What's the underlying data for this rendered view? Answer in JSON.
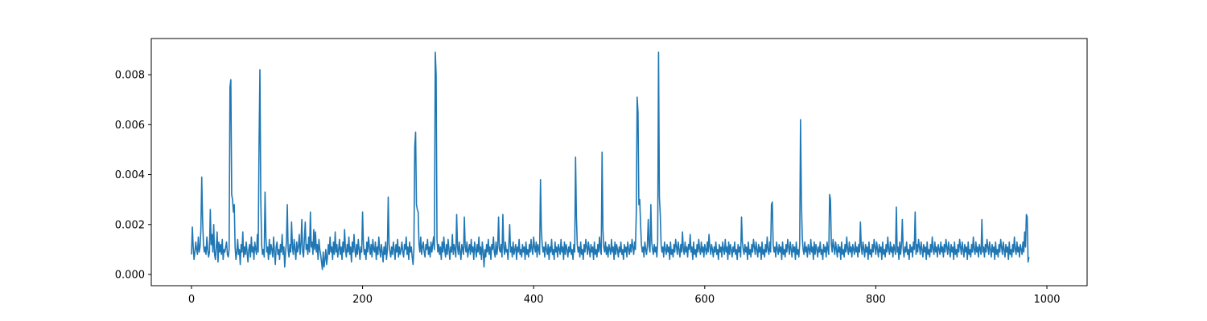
{
  "chart_data": {
    "type": "line",
    "title": "",
    "xlabel": "",
    "ylabel": "",
    "xlim": [
      -47,
      1047
    ],
    "ylim": [
      -0.00045,
      0.00945
    ],
    "xticks": [
      0,
      200,
      400,
      600,
      800,
      1000
    ],
    "xtick_labels": [
      "0",
      "200",
      "400",
      "600",
      "800",
      "1000"
    ],
    "yticks": [
      0,
      0.002,
      0.004,
      0.006,
      0.008
    ],
    "ytick_labels": [
      "0.000",
      "0.002",
      "0.004",
      "0.006",
      "0.008"
    ],
    "grid": false,
    "legend": "none",
    "series": [
      {
        "color": "#1f77b4",
        "x_start": 0,
        "x_step": 1,
        "values": [
          0.0008,
          0.0019,
          0.0011,
          0.0006,
          0.0009,
          0.0013,
          0.001,
          0.0008,
          0.0015,
          0.0009,
          0.0011,
          0.0018,
          0.0039,
          0.0022,
          0.0012,
          0.0009,
          0.0011,
          0.0008,
          0.0015,
          0.001,
          0.0007,
          0.0009,
          0.0026,
          0.0012,
          0.0016,
          0.0009,
          0.002,
          0.0008,
          0.0006,
          0.0011,
          0.0017,
          0.0005,
          0.0013,
          0.0009,
          0.0012,
          0.0008,
          0.0014,
          0.0006,
          0.001,
          0.0009,
          0.0011,
          0.0013,
          0.0008,
          0.0007,
          0.001,
          0.0075,
          0.0078,
          0.0032,
          0.003,
          0.0025,
          0.0028,
          0.0011,
          0.0006,
          0.0009,
          0.0014,
          0.0008,
          0.001,
          0.0004,
          0.0012,
          0.0009,
          0.0017,
          0.0007,
          0.0011,
          0.0008,
          0.0013,
          0.0009,
          0.0005,
          0.001,
          0.0012,
          0.0007,
          0.0015,
          0.0009,
          0.0011,
          0.0006,
          0.0013,
          0.001,
          0.0008,
          0.0016,
          0.0009,
          0.0052,
          0.0082,
          0.0031,
          0.0012,
          0.0008,
          0.001,
          0.0007,
          0.0033,
          0.0015,
          0.0009,
          0.0011,
          0.0006,
          0.0014,
          0.0008,
          0.0012,
          0.001,
          0.0007,
          0.0015,
          0.0009,
          0.0004,
          0.0011,
          0.0013,
          0.0008,
          0.001,
          0.0006,
          0.0012,
          0.0009,
          0.0016,
          0.0008,
          0.0011,
          0.0003,
          0.0009,
          0.0013,
          0.0028,
          0.001,
          0.0007,
          0.0012,
          0.0009,
          0.0021,
          0.0011,
          0.0008,
          0.0014,
          0.001,
          0.0006,
          0.0013,
          0.0009,
          0.0011,
          0.0016,
          0.0008,
          0.0012,
          0.0022,
          0.0009,
          0.0007,
          0.0014,
          0.0021,
          0.001,
          0.0012,
          0.0008,
          0.0015,
          0.0009,
          0.0025,
          0.0011,
          0.0013,
          0.0008,
          0.0018,
          0.001,
          0.0017,
          0.0009,
          0.0012,
          0.0006,
          0.0014,
          0.001,
          0.0008,
          0.0005,
          0.0002,
          0.0009,
          0.0003,
          0.0006,
          0.001,
          0.0004,
          0.0007,
          0.0012,
          0.0008,
          0.0015,
          0.0009,
          0.0011,
          0.0006,
          0.0013,
          0.0008,
          0.0017,
          0.0009,
          0.0012,
          0.0007,
          0.001,
          0.0014,
          0.0008,
          0.0011,
          0.0006,
          0.0013,
          0.0009,
          0.0018,
          0.001,
          0.0007,
          0.0012,
          0.0009,
          0.0015,
          0.0008,
          0.0011,
          0.0005,
          0.0013,
          0.0009,
          0.0016,
          0.001,
          0.0007,
          0.0012,
          0.0008,
          0.0014,
          0.001,
          0.0006,
          0.0011,
          0.0009,
          0.0025,
          0.0012,
          0.0008,
          0.001,
          0.0006,
          0.0013,
          0.0009,
          0.0015,
          0.0011,
          0.0008,
          0.0012,
          0.0007,
          0.0014,
          0.001,
          0.0009,
          0.0013,
          0.0006,
          0.0011,
          0.0008,
          0.0015,
          0.001,
          0.0007,
          0.0012,
          0.0009,
          0.0005,
          0.0011,
          0.0008,
          0.0013,
          0.0006,
          0.001,
          0.0031,
          0.0012,
          0.0009,
          0.0007,
          0.0011,
          0.0008,
          0.0013,
          0.001,
          0.0006,
          0.0012,
          0.0009,
          0.0014,
          0.0007,
          0.0011,
          0.0008,
          0.001,
          0.0013,
          0.0009,
          0.0007,
          0.0012,
          0.001,
          0.0015,
          0.0008,
          0.0011,
          0.0006,
          0.0013,
          0.0009,
          0.0011,
          0.0007,
          0.0004,
          0.001,
          0.0051,
          0.0057,
          0.0028,
          0.0026,
          0.0025,
          0.0012,
          0.0009,
          0.0015,
          0.0008,
          0.0011,
          0.0013,
          0.0009,
          0.0007,
          0.0012,
          0.001,
          0.0014,
          0.0008,
          0.0011,
          0.0007,
          0.0013,
          0.0009,
          0.0012,
          0.0015,
          0.001,
          0.0089,
          0.008,
          0.0014,
          0.0009,
          0.0012,
          0.0008,
          0.0011,
          0.0006,
          0.0013,
          0.0009,
          0.0015,
          0.001,
          0.0007,
          0.0012,
          0.0008,
          0.0014,
          0.001,
          0.0006,
          0.0011,
          0.0009,
          0.0016,
          0.0008,
          0.0012,
          0.001,
          0.0007,
          0.0024,
          0.0011,
          0.0008,
          0.0013,
          0.0009,
          0.0006,
          0.0012,
          0.001,
          0.0008,
          0.0023,
          0.0011,
          0.0009,
          0.0013,
          0.0007,
          0.001,
          0.0012,
          0.0008,
          0.0014,
          0.0009,
          0.0011,
          0.0006,
          0.0013,
          0.001,
          0.0007,
          0.0012,
          0.0009,
          0.0015,
          0.0008,
          0.0011,
          0.0006,
          0.0013,
          0.0009,
          0.0003,
          0.001,
          0.0007,
          0.0012,
          0.0009,
          0.0014,
          0.0008,
          0.0011,
          0.0006,
          0.0012,
          0.001,
          0.0015,
          0.0009,
          0.0007,
          0.0013,
          0.0008,
          0.0011,
          0.0023,
          0.001,
          0.0009,
          0.0012,
          0.0007,
          0.0024,
          0.0011,
          0.0008,
          0.0013,
          0.0009,
          0.001,
          0.0006,
          0.0012,
          0.002,
          0.0009,
          0.0011,
          0.0007,
          0.0013,
          0.0008,
          0.001,
          0.0012,
          0.0006,
          0.0011,
          0.0009,
          0.0014,
          0.0008,
          0.001,
          0.0007,
          0.0012,
          0.0009,
          0.0011,
          0.0006,
          0.0013,
          0.0008,
          0.001,
          0.0007,
          0.0012,
          0.0009,
          0.0014,
          0.001,
          0.0008,
          0.0015,
          0.0011,
          0.0009,
          0.0013,
          0.0007,
          0.0012,
          0.001,
          0.0008,
          0.0038,
          0.0018,
          0.0012,
          0.0009,
          0.0011,
          0.0007,
          0.0013,
          0.001,
          0.0008,
          0.0012,
          0.0006,
          0.0011,
          0.0009,
          0.0014,
          0.0008,
          0.001,
          0.0006,
          0.0013,
          0.0009,
          0.0011,
          0.0007,
          0.0012,
          0.001,
          0.0008,
          0.0014,
          0.0009,
          0.0011,
          0.0006,
          0.0013,
          0.0008,
          0.0012,
          0.001,
          0.0007,
          0.0011,
          0.0009,
          0.0013,
          0.0008,
          0.001,
          0.0006,
          0.0012,
          0.0009,
          0.0047,
          0.0023,
          0.0012,
          0.0009,
          0.0011,
          0.0007,
          0.0013,
          0.0008,
          0.001,
          0.0006,
          0.0012,
          0.0009,
          0.0014,
          0.0011,
          0.0008,
          0.0013,
          0.001,
          0.0007,
          0.0012,
          0.0009,
          0.0011,
          0.0006,
          0.0013,
          0.0008,
          0.001,
          0.0007,
          0.0012,
          0.0009,
          0.0015,
          0.001,
          0.0008,
          0.0049,
          0.0018,
          0.0011,
          0.0009,
          0.0013,
          0.0008,
          0.0011,
          0.0007,
          0.0012,
          0.001,
          0.0008,
          0.0014,
          0.0009,
          0.0011,
          0.0006,
          0.0013,
          0.0008,
          0.0012,
          0.001,
          0.0007,
          0.0011,
          0.0009,
          0.0013,
          0.0008,
          0.001,
          0.0006,
          0.0012,
          0.0009,
          0.0011,
          0.0007,
          0.0013,
          0.001,
          0.0008,
          0.0012,
          0.0009,
          0.0014,
          0.0011,
          0.0008,
          0.0013,
          0.001,
          0.0025,
          0.0071,
          0.0065,
          0.0028,
          0.003,
          0.002,
          0.0012,
          0.0009,
          0.0011,
          0.0007,
          0.0013,
          0.001,
          0.0008,
          0.0012,
          0.0022,
          0.0011,
          0.0009,
          0.0028,
          0.0013,
          0.001,
          0.0008,
          0.0012,
          0.0009,
          0.0011,
          0.0007,
          0.0013,
          0.0089,
          0.0031,
          0.0024,
          0.0012,
          0.0009,
          0.0011,
          0.0007,
          0.0013,
          0.001,
          0.0008,
          0.0012,
          0.0009,
          0.0011,
          0.0006,
          0.0013,
          0.0008,
          0.001,
          0.0007,
          0.0012,
          0.0009,
          0.0014,
          0.0011,
          0.0008,
          0.0013,
          0.001,
          0.0007,
          0.0012,
          0.0009,
          0.0017,
          0.001,
          0.0008,
          0.0013,
          0.0009,
          0.0011,
          0.0007,
          0.0012,
          0.001,
          0.0016,
          0.0009,
          0.0011,
          0.0006,
          0.0013,
          0.0008,
          0.001,
          0.0007,
          0.0012,
          0.0009,
          0.0014,
          0.001,
          0.0008,
          0.0013,
          0.0009,
          0.0011,
          0.0007,
          0.0012,
          0.001,
          0.0008,
          0.0013,
          0.0009,
          0.0016,
          0.0011,
          0.0008,
          0.0012,
          0.001,
          0.0007,
          0.0011,
          0.0009,
          0.0013,
          0.0008,
          0.001,
          0.0006,
          0.0012,
          0.0009,
          0.0011,
          0.0007,
          0.0013,
          0.001,
          0.0008,
          0.0014,
          0.0009,
          0.0011,
          0.0006,
          0.0013,
          0.0008,
          0.0012,
          0.001,
          0.0007,
          0.0011,
          0.0009,
          0.0013,
          0.0008,
          0.001,
          0.0006,
          0.0012,
          0.0009,
          0.0011,
          0.0007,
          0.0023,
          0.0013,
          0.001,
          0.0008,
          0.0012,
          0.0009,
          0.0011,
          0.0006,
          0.0013,
          0.0008,
          0.001,
          0.0007,
          0.0012,
          0.0009,
          0.0014,
          0.0011,
          0.0008,
          0.0013,
          0.001,
          0.0007,
          0.0012,
          0.0009,
          0.0011,
          0.0006,
          0.0013,
          0.0008,
          0.001,
          0.0007,
          0.0012,
          0.0009,
          0.0015,
          0.001,
          0.0008,
          0.0013,
          0.0009,
          0.0028,
          0.0029,
          0.0012,
          0.0009,
          0.0011,
          0.0007,
          0.0013,
          0.001,
          0.0008,
          0.0012,
          0.0009,
          0.0011,
          0.0006,
          0.0013,
          0.0008,
          0.001,
          0.0007,
          0.0012,
          0.0009,
          0.0014,
          0.0011,
          0.0008,
          0.0013,
          0.001,
          0.0007,
          0.0012,
          0.0009,
          0.0011,
          0.0006,
          0.0013,
          0.0008,
          0.001,
          0.0007,
          0.0012,
          0.0062,
          0.003,
          0.0015,
          0.001,
          0.0008,
          0.0013,
          0.0009,
          0.0011,
          0.0007,
          0.0012,
          0.001,
          0.0008,
          0.0014,
          0.0009,
          0.0011,
          0.0006,
          0.0013,
          0.0008,
          0.0012,
          0.001,
          0.0007,
          0.0011,
          0.0009,
          0.0013,
          0.0008,
          0.001,
          0.0006,
          0.0012,
          0.0009,
          0.0011,
          0.0007,
          0.0013,
          0.001,
          0.0008,
          0.0032,
          0.003,
          0.0012,
          0.0009,
          0.0014,
          0.0011,
          0.0008,
          0.0013,
          0.001,
          0.0007,
          0.0012,
          0.0009,
          0.0011,
          0.0006,
          0.0013,
          0.0008,
          0.001,
          0.0007,
          0.0012,
          0.0009,
          0.0015,
          0.001,
          0.0008,
          0.0013,
          0.0009,
          0.0011,
          0.0007,
          0.0012,
          0.001,
          0.0008,
          0.0013,
          0.0009,
          0.0011,
          0.0007,
          0.0012,
          0.0009,
          0.0021,
          0.0011,
          0.0008,
          0.0013,
          0.001,
          0.0007,
          0.0012,
          0.0009,
          0.0011,
          0.0006,
          0.0013,
          0.0008,
          0.001,
          0.0007,
          0.0012,
          0.0009,
          0.0014,
          0.0011,
          0.0008,
          0.0013,
          0.001,
          0.0007,
          0.0012,
          0.0009,
          0.0011,
          0.0006,
          0.0013,
          0.0008,
          0.001,
          0.0007,
          0.0012,
          0.0009,
          0.0015,
          0.001,
          0.0008,
          0.0013,
          0.0009,
          0.0011,
          0.0007,
          0.0012,
          0.001,
          0.0008,
          0.0027,
          0.0009,
          0.0011,
          0.0006,
          0.0013,
          0.0008,
          0.0012,
          0.0022,
          0.001,
          0.0007,
          0.0011,
          0.0009,
          0.0013,
          0.0008,
          0.001,
          0.0006,
          0.0012,
          0.0009,
          0.0011,
          0.0007,
          0.0013,
          0.001,
          0.0025,
          0.0008,
          0.0012,
          0.0009,
          0.0014,
          0.0011,
          0.0008,
          0.0013,
          0.001,
          0.0007,
          0.0012,
          0.0009,
          0.0011,
          0.0006,
          0.0013,
          0.0008,
          0.001,
          0.0007,
          0.0012,
          0.0009,
          0.0015,
          0.001,
          0.0008,
          0.0013,
          0.0009,
          0.0011,
          0.0007,
          0.0012,
          0.001,
          0.0008,
          0.0013,
          0.0009,
          0.0011,
          0.0007,
          0.0012,
          0.0009,
          0.0014,
          0.0011,
          0.0008,
          0.0013,
          0.001,
          0.0007,
          0.0012,
          0.0009,
          0.0011,
          0.0006,
          0.0013,
          0.0008,
          0.001,
          0.0007,
          0.0012,
          0.0009,
          0.0014,
          0.0011,
          0.0008,
          0.0013,
          0.001,
          0.0007,
          0.0012,
          0.0009,
          0.0011,
          0.0006,
          0.0013,
          0.0008,
          0.001,
          0.0007,
          0.0012,
          0.0009,
          0.0015,
          0.001,
          0.0008,
          0.0013,
          0.0009,
          0.0011,
          0.0007,
          0.0012,
          0.001,
          0.0008,
          0.0022,
          0.0009,
          0.0011,
          0.0007,
          0.0012,
          0.0009,
          0.0014,
          0.0011,
          0.0008,
          0.0013,
          0.001,
          0.0007,
          0.0012,
          0.0009,
          0.0011,
          0.0006,
          0.0013,
          0.0008,
          0.001,
          0.0007,
          0.0012,
          0.0009,
          0.0014,
          0.0011,
          0.0008,
          0.0013,
          0.001,
          0.0007,
          0.0012,
          0.0009,
          0.0011,
          0.0006,
          0.0013,
          0.0008,
          0.001,
          0.0007,
          0.0012,
          0.0009,
          0.0015,
          0.001,
          0.0008,
          0.0013,
          0.0009,
          0.0011,
          0.0007,
          0.0012,
          0.001,
          0.0008,
          0.0013,
          0.0009,
          0.0017,
          0.0011,
          0.0024,
          0.0023,
          0.0005,
          0.0007
        ]
      }
    ]
  }
}
